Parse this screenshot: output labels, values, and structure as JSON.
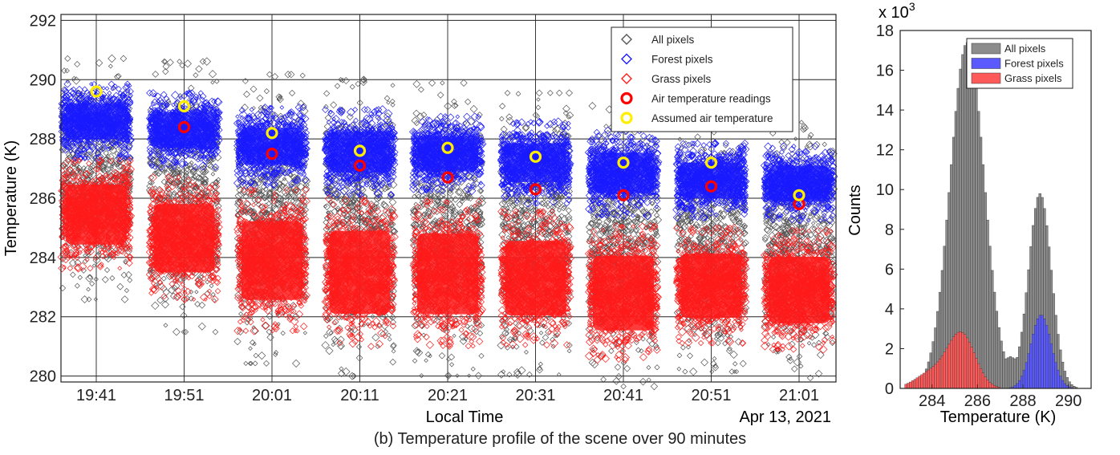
{
  "caption": "(b) Temperature profile of the scene over 90 minutes",
  "chart_data": [
    {
      "type": "scatter",
      "xlabel": "Local Time",
      "ylabel": "Temperature (K)",
      "date_label": "Apr 13, 2021",
      "categories": [
        "19:41",
        "19:51",
        "20:01",
        "20:11",
        "20:21",
        "20:31",
        "20:41",
        "20:51",
        "21:01"
      ],
      "ylim": [
        279.8,
        292.2
      ],
      "yticks": [
        280,
        282,
        284,
        286,
        288,
        290,
        292
      ],
      "grid": true,
      "legend": {
        "placement": "top-right",
        "entries": [
          {
            "label": "All pixels",
            "color": "#555555",
            "marker": "diamond"
          },
          {
            "label": "Forest pixels",
            "color": "#1a1aff",
            "marker": "diamond"
          },
          {
            "label": "Grass pixels",
            "color": "#ff1a1a",
            "marker": "diamond"
          },
          {
            "label": "Air temperature readings",
            "color": "#ff0000",
            "marker": "circle"
          },
          {
            "label": "Assumed air temperature",
            "color": "#ffee00",
            "marker": "circle"
          }
        ]
      },
      "series": [
        {
          "name": "Air temperature readings",
          "values": [
            null,
            288.4,
            287.5,
            287.1,
            286.7,
            286.3,
            286.1,
            286.4,
            285.8
          ]
        },
        {
          "name": "Assumed air temperature",
          "values": [
            289.6,
            289.1,
            288.2,
            287.6,
            287.7,
            287.4,
            287.2,
            287.2,
            286.1
          ]
        },
        {
          "name": "Forest pixels",
          "low": [
            287.6,
            287.3,
            286.7,
            286.4,
            286.5,
            286.1,
            285.7,
            285.6,
            285.5
          ],
          "high": [
            289.6,
            289.3,
            288.8,
            288.7,
            288.5,
            288.3,
            288.0,
            287.6,
            287.5
          ]
        },
        {
          "name": "Grass pixels",
          "low": [
            284.0,
            283.0,
            282.0,
            281.5,
            281.5,
            281.5,
            281.0,
            281.5,
            281.3
          ],
          "high": [
            286.9,
            286.3,
            285.8,
            285.5,
            285.4,
            285.1,
            284.6,
            284.6,
            284.5
          ]
        },
        {
          "name": "All pixels",
          "low": [
            283.4,
            282.4,
            281.4,
            281.0,
            281.0,
            281.0,
            280.6,
            281.0,
            280.8
          ],
          "high": [
            289.9,
            289.7,
            289.2,
            289.0,
            288.9,
            288.6,
            288.2,
            287.8,
            287.7
          ]
        }
      ]
    },
    {
      "type": "histogram",
      "xlabel": "Temperature (K)",
      "ylabel": "Counts",
      "y_multiplier": "x 10",
      "y_multiplier_exp": "3",
      "xlim": [
        282.6,
        291.0
      ],
      "xticks": [
        284,
        286,
        288,
        290
      ],
      "ylim": [
        0,
        18
      ],
      "yticks": [
        0,
        2,
        4,
        6,
        8,
        10,
        12,
        14,
        16,
        18
      ],
      "legend": {
        "placement": "top-right",
        "entries": [
          {
            "label": "All pixels",
            "color": "#8c8c8c"
          },
          {
            "label": "Forest pixels",
            "color": "#5a5aff"
          },
          {
            "label": "Grass pixels",
            "color": "#ff5a5a"
          }
        ]
      },
      "bin_width": 0.1,
      "bin_start": 282.8,
      "series": [
        {
          "name": "All pixels",
          "peaks": [
            {
              "center": 285.55,
              "height": 17.4,
              "sigma": 0.75
            },
            {
              "center": 288.75,
              "height": 9.8,
              "sigma": 0.5
            }
          ],
          "floor_center": 287.45,
          "floor_value": 1.6
        },
        {
          "name": "Forest pixels",
          "peaks": [
            {
              "center": 288.8,
              "height": 3.7,
              "sigma": 0.45
            }
          ]
        },
        {
          "name": "Grass pixels",
          "peaks": [
            {
              "center": 285.3,
              "height": 2.7,
              "sigma": 0.6
            },
            {
              "center": 284.0,
              "height": 0.8,
              "sigma": 0.7
            }
          ]
        }
      ]
    }
  ]
}
